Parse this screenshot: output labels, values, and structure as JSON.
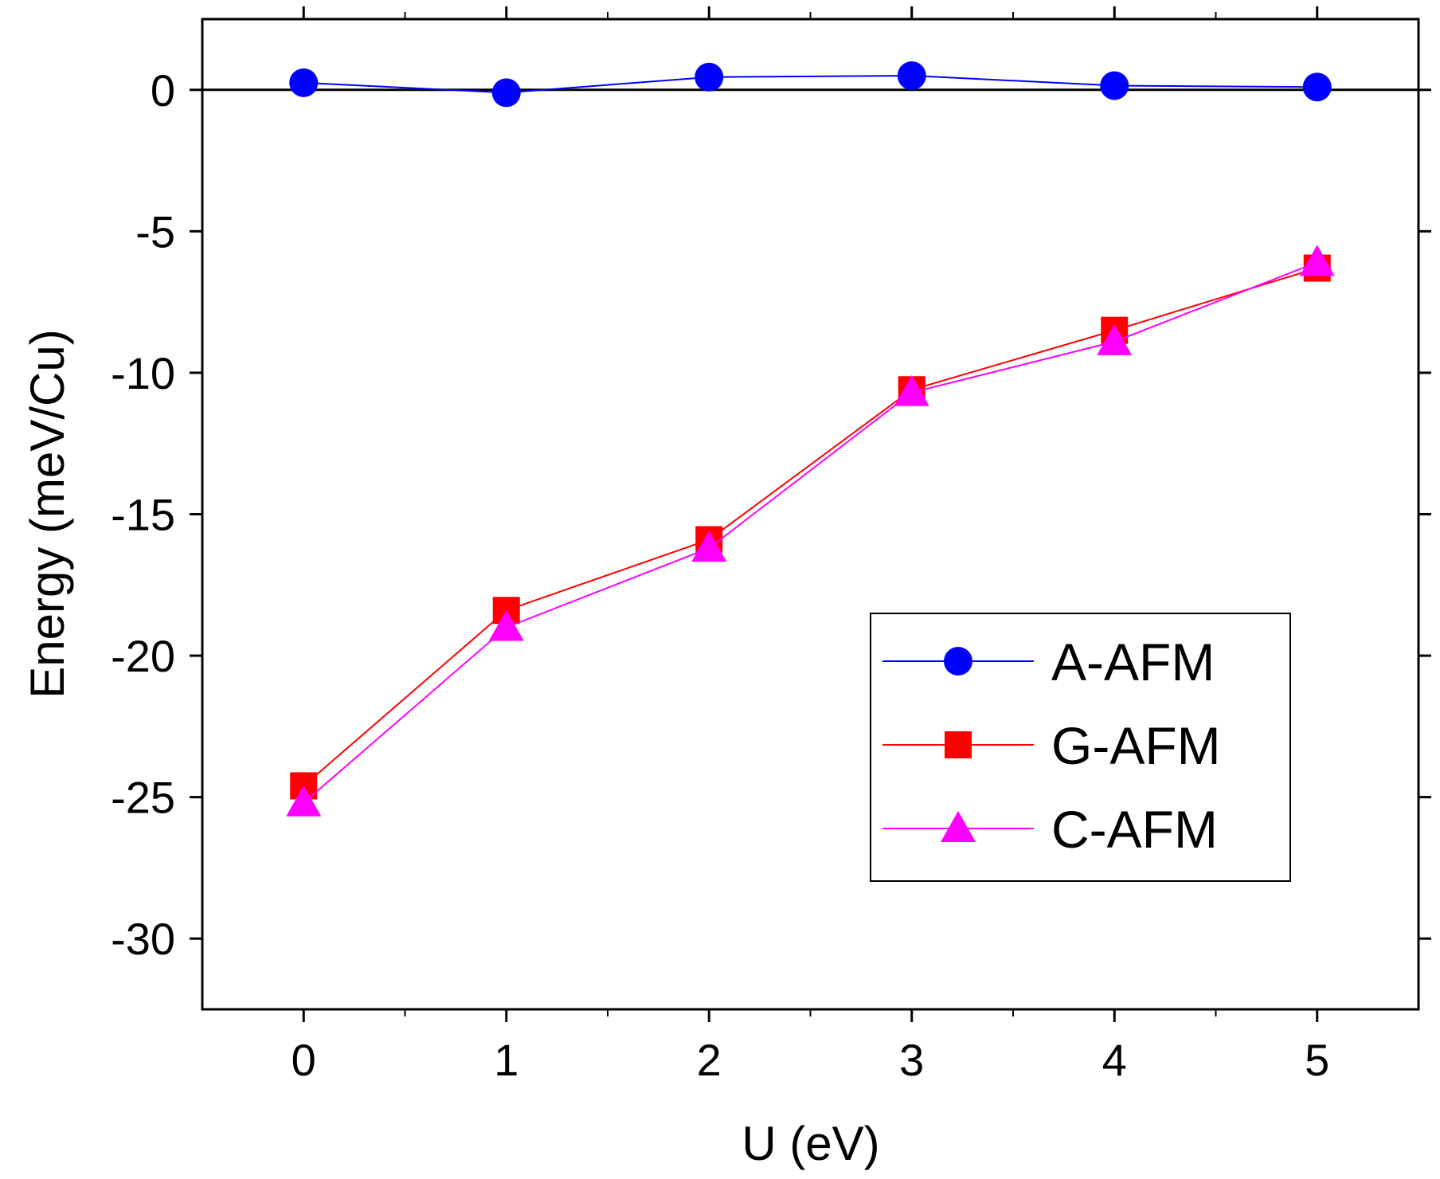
{
  "chart_data": {
    "type": "line",
    "title": "",
    "xlabel": "U (eV)",
    "ylabel": "Energy (meV/Cu)",
    "x": [
      0,
      1,
      2,
      3,
      4,
      5
    ],
    "xlim": [
      -0.5,
      5.5
    ],
    "ylim": [
      -32.5,
      2.5
    ],
    "xticks": [
      0,
      1,
      2,
      3,
      4,
      5
    ],
    "yticks": [
      0,
      -5,
      -10,
      -15,
      -20,
      -25,
      -30
    ],
    "minor_ticks": true,
    "reference_line_y": 0,
    "grid": false,
    "legend_position": "lower-right",
    "series": [
      {
        "name": "A-AFM",
        "color": "#0000ff",
        "marker": "circle",
        "values": [
          0.25,
          -0.1,
          0.45,
          0.5,
          0.15,
          0.1
        ]
      },
      {
        "name": "G-AFM",
        "color": "#ff0000",
        "marker": "square",
        "values": [
          -24.6,
          -18.4,
          -15.9,
          -10.6,
          -8.5,
          -6.3
        ]
      },
      {
        "name": "C-AFM",
        "color": "#ff00ff",
        "marker": "triangle",
        "values": [
          -25.2,
          -19.0,
          -16.2,
          -10.7,
          -8.9,
          -6.1
        ]
      }
    ]
  }
}
